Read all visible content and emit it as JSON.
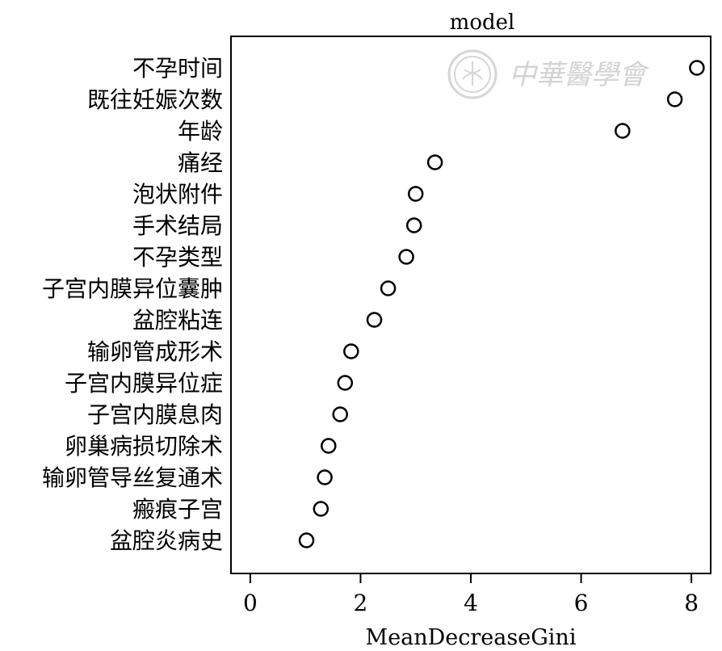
{
  "chart_data": {
    "type": "scatter",
    "title": "model",
    "xlabel": "MeanDecreaseGini",
    "ylabel": "",
    "xlim": [
      -0.35,
      8.35
    ],
    "xticks": [
      0,
      2,
      4,
      6,
      8
    ],
    "grid": false,
    "legend": "none",
    "categories": [
      "不孕时间",
      "既往妊娠次数",
      "年龄",
      "痛经",
      "泡状附件",
      "手术结局",
      "不孕类型",
      "子宫内膜异位囊肿",
      "盆腔粘连",
      "输卵管成形术",
      "子宫内膜异位症",
      "子宫内膜息肉",
      "卵巢病损切除术",
      "输卵管导丝复通术",
      "瘢痕子宫",
      "盆腔炎病史"
    ],
    "values": [
      8.1,
      7.7,
      6.75,
      3.35,
      3.0,
      2.97,
      2.83,
      2.5,
      2.25,
      1.83,
      1.72,
      1.63,
      1.42,
      1.35,
      1.28,
      1.02
    ],
    "marker_color": "#000000"
  },
  "watermark": {
    "text": "中華醫學會",
    "color": "#d3d3d3"
  }
}
